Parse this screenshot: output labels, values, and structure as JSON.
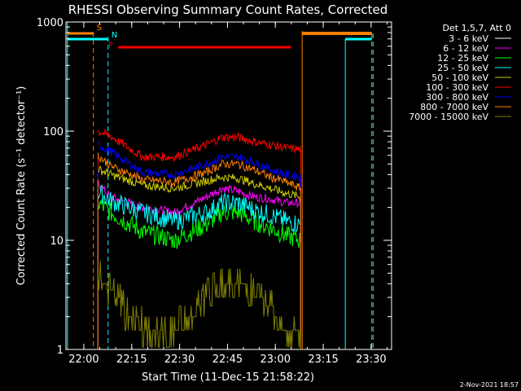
{
  "chart_data": {
    "type": "line",
    "title": "RHESSI Observing Summary Count Rates, Corrected",
    "xlabel": "Start Time (11-Dec-15 21:58:22)",
    "ylabel": "Corrected Count Rate (s⁻¹ detector⁻¹)",
    "yscale": "log",
    "ylim": [
      1,
      1000
    ],
    "xlim_minutes_after_start": [
      -4,
      98
    ],
    "x_ticks": [
      {
        "label": "22:00",
        "t": 1.6
      },
      {
        "label": "22:15",
        "t": 16.6
      },
      {
        "label": "22:30",
        "t": 31.6
      },
      {
        "label": "22:45",
        "t": 46.6
      },
      {
        "label": "23:00",
        "t": 61.6
      },
      {
        "label": "23:15",
        "t": 76.6
      },
      {
        "label": "23:30",
        "t": 91.6
      }
    ],
    "y_ticks": [
      {
        "label": "1",
        "v": 1
      },
      {
        "label": "10",
        "v": 10
      },
      {
        "label": "100",
        "v": 100
      },
      {
        "label": "1000",
        "v": 1000
      }
    ],
    "timestamp": "2-Nov-2021 18:57",
    "legend": {
      "title": "Det 1,5,7, Att 0",
      "placement": "right-outside"
    },
    "series": [
      {
        "name": "3 - 6 keV",
        "color": "#000000",
        "x": [
          6,
          10,
          20,
          30,
          40,
          45,
          50,
          55,
          60,
          65,
          69.5
        ],
        "y": [
          90,
          88,
          80,
          72,
          85,
          95,
          90,
          80,
          75,
          68,
          65
        ]
      },
      {
        "name": "6 - 12 keV",
        "color": "#ff00ff",
        "x": [
          6,
          10,
          20,
          30,
          40,
          45,
          50,
          55,
          60,
          65,
          69.5
        ],
        "y": [
          33,
          25,
          20,
          18,
          25,
          30,
          28,
          25,
          24,
          22,
          22
        ]
      },
      {
        "name": "12 - 25 keV",
        "color": "#00ff00",
        "x": [
          6,
          10,
          20,
          30,
          40,
          45,
          50,
          55,
          60,
          65,
          69.5
        ],
        "y": [
          22,
          18,
          12,
          10,
          14,
          18,
          18,
          15,
          13,
          11,
          10
        ]
      },
      {
        "name": "25 - 50 keV",
        "color": "#00ffff",
        "x": [
          6,
          10,
          20,
          30,
          40,
          45,
          50,
          55,
          60,
          65,
          69.5
        ],
        "y": [
          28,
          23,
          18,
          15,
          18,
          22,
          22,
          19,
          17,
          15,
          14
        ]
      },
      {
        "name": "50 - 100 keV",
        "color": "#cccc00",
        "x": [
          6,
          10,
          20,
          30,
          40,
          45,
          50,
          55,
          60,
          65,
          69.5
        ],
        "y": [
          45,
          40,
          32,
          30,
          35,
          38,
          37,
          33,
          30,
          27,
          25
        ]
      },
      {
        "name": "100 - 300 keV",
        "color": "#ff0000",
        "x": [
          6,
          10,
          20,
          30,
          40,
          45,
          50,
          55,
          60,
          65,
          69.5
        ],
        "y": [
          100,
          90,
          58,
          58,
          75,
          88,
          88,
          80,
          75,
          70,
          68
        ]
      },
      {
        "name": "300 - 800 keV",
        "color": "#0000ff",
        "x": [
          6,
          10,
          20,
          30,
          40,
          45,
          50,
          55,
          60,
          65,
          69.5
        ],
        "y": [
          75,
          65,
          42,
          40,
          50,
          58,
          58,
          52,
          45,
          40,
          38
        ]
      },
      {
        "name": "800 - 7000 keV",
        "color": "#ff8000",
        "x": [
          6,
          10,
          20,
          30,
          40,
          45,
          50,
          55,
          60,
          65,
          69.5
        ],
        "y": [
          60,
          48,
          36,
          34,
          42,
          50,
          50,
          44,
          38,
          34,
          30
        ]
      },
      {
        "name": "7000 - 15000 keV",
        "color": "#808000",
        "x": [
          6,
          8,
          12,
          16,
          22,
          30,
          36,
          40,
          44,
          48,
          52,
          56,
          60,
          66,
          69.5
        ],
        "y": [
          5,
          4,
          3,
          2,
          1.5,
          1.5,
          2,
          3,
          4,
          4,
          4,
          3,
          2.5,
          1.5,
          1.5
        ]
      }
    ],
    "annotations": [
      {
        "label": "S",
        "color": "#ff8000",
        "t": 4.6
      },
      {
        "label": "N",
        "color": "#00ffff",
        "t": 9.2
      },
      {
        "label": "F",
        "color": "#ff0000",
        "t": 10.6
      }
    ]
  }
}
